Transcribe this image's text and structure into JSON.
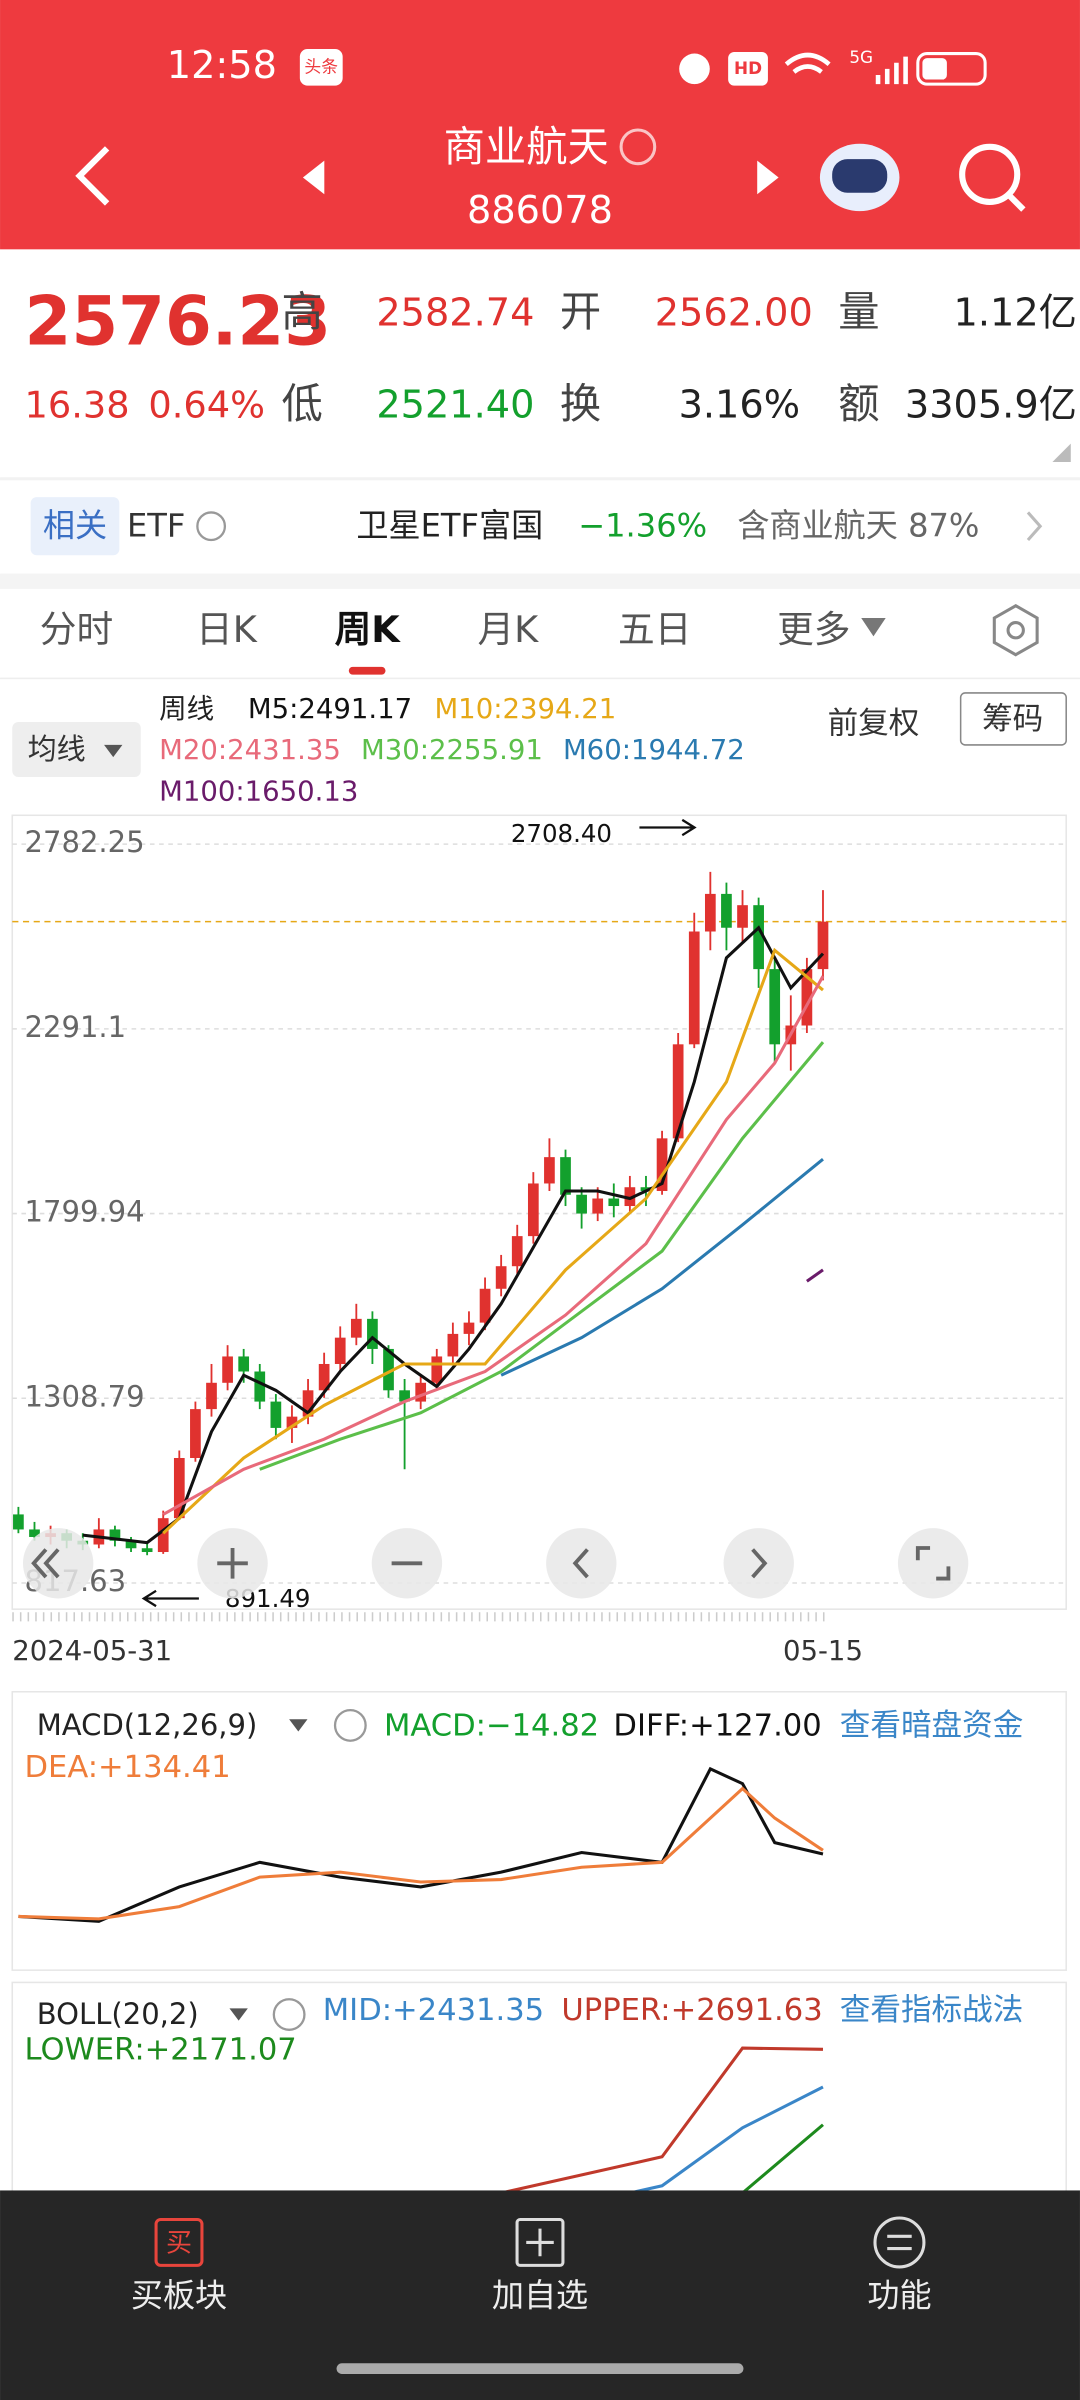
{
  "status": {
    "time": "12:58",
    "badge": "头条",
    "hd": "HD",
    "net": "5G"
  },
  "header": {
    "title": "商业航天",
    "code": "886078"
  },
  "quote": {
    "price": "2576.23",
    "change": "16.38",
    "pct": "0.64%",
    "items": [
      [
        "高",
        "2582.74"
      ],
      [
        "开",
        "2562.00"
      ],
      [
        "量",
        "1.12亿"
      ],
      [
        "低",
        "2521.40"
      ],
      [
        "换",
        "3.16%"
      ],
      [
        "额",
        "3305.9亿"
      ]
    ]
  },
  "etf": {
    "tag": "相关",
    "label": "ETF",
    "name": "卫星ETF富国",
    "pct": "−1.36%",
    "note": "含商业航天 87%"
  },
  "tabs": [
    "分时",
    "日K",
    "周K",
    "月K",
    "五日",
    "更多"
  ],
  "indicator": {
    "menu": "均线",
    "period": "周线",
    "ma_labels": [
      "M5:2491.17",
      "M10:2394.21",
      "M20:2431.35",
      "M30:2255.91",
      "M60:1944.72",
      "M100:1650.13"
    ],
    "adjust": "前复权",
    "chips": "筹码"
  },
  "chart": {
    "ylim": [
      748,
      2859
    ],
    "yticks": [
      2782.25,
      2291.1,
      1799.94,
      1308.79,
      817.63
    ],
    "current": 2576.23,
    "high_label": "2708.40",
    "low_label": "891.49",
    "x_labels": [
      "2024-05-31",
      "05-15"
    ],
    "candles": [
      [
        1000,
        960,
        1020,
        950
      ],
      [
        960,
        940,
        980,
        930
      ],
      [
        940,
        950,
        970,
        920
      ],
      [
        950,
        930,
        960,
        910
      ],
      [
        930,
        920,
        950,
        905
      ],
      [
        920,
        960,
        990,
        910
      ],
      [
        960,
        930,
        970,
        915
      ],
      [
        930,
        910,
        940,
        900
      ],
      [
        910,
        900,
        925,
        891.49
      ],
      [
        900,
        990,
        1010,
        895
      ],
      [
        990,
        1150,
        1170,
        985
      ],
      [
        1150,
        1280,
        1300,
        1140
      ],
      [
        1280,
        1350,
        1400,
        1260
      ],
      [
        1350,
        1420,
        1450,
        1330
      ],
      [
        1420,
        1380,
        1440,
        1350
      ],
      [
        1380,
        1300,
        1400,
        1280
      ],
      [
        1300,
        1230,
        1320,
        1200
      ],
      [
        1230,
        1260,
        1290,
        1190
      ],
      [
        1260,
        1330,
        1360,
        1240
      ],
      [
        1330,
        1400,
        1430,
        1310
      ],
      [
        1400,
        1470,
        1500,
        1380
      ],
      [
        1470,
        1520,
        1560,
        1450
      ],
      [
        1520,
        1440,
        1540,
        1400
      ],
      [
        1440,
        1330,
        1450,
        1310
      ],
      [
        1330,
        1300,
        1360,
        1120
      ],
      [
        1300,
        1350,
        1370,
        1280
      ],
      [
        1350,
        1420,
        1440,
        1330
      ],
      [
        1420,
        1480,
        1510,
        1400
      ],
      [
        1480,
        1510,
        1540,
        1450
      ],
      [
        1510,
        1600,
        1630,
        1490
      ],
      [
        1600,
        1660,
        1690,
        1580
      ],
      [
        1660,
        1740,
        1770,
        1640
      ],
      [
        1740,
        1880,
        1910,
        1720
      ],
      [
        1880,
        1950,
        2000,
        1860
      ],
      [
        1950,
        1850,
        1970,
        1820
      ],
      [
        1850,
        1800,
        1870,
        1760
      ],
      [
        1800,
        1840,
        1870,
        1780
      ],
      [
        1840,
        1820,
        1880,
        1790
      ],
      [
        1820,
        1870,
        1900,
        1800
      ],
      [
        1870,
        1860,
        1900,
        1820
      ],
      [
        1860,
        2000,
        2020,
        1850
      ],
      [
        2000,
        2250,
        2280,
        1990
      ],
      [
        2250,
        2550,
        2600,
        2240
      ],
      [
        2550,
        2650,
        2708.4,
        2500
      ],
      [
        2650,
        2560,
        2680,
        2500
      ],
      [
        2560,
        2620,
        2660,
        2520
      ],
      [
        2620,
        2450,
        2640,
        2400
      ],
      [
        2450,
        2250,
        2480,
        2200
      ],
      [
        2250,
        2300,
        2380,
        2180
      ],
      [
        2300,
        2450,
        2480,
        2280
      ],
      [
        2450,
        2576.23,
        2660,
        2420
      ]
    ],
    "ma": [
      {
        "color": "#111111",
        "x": [
          4,
          6,
          8,
          10,
          12,
          14,
          16,
          18,
          20,
          22,
          24,
          26,
          28,
          30,
          32,
          34,
          36,
          38,
          40,
          42,
          44,
          46,
          48,
          50
        ],
        "values": [
          945,
          935,
          925,
          990,
          1220,
          1370,
          1330,
          1270,
          1380,
          1470,
          1400,
          1340,
          1440,
          1560,
          1710,
          1860,
          1860,
          1840,
          1880,
          2150,
          2480,
          2560,
          2400,
          2491.17
        ]
      },
      {
        "color": "#e6a817",
        "x": [
          9,
          14,
          19,
          24,
          29,
          34,
          39,
          44,
          47,
          50
        ],
        "values": [
          950,
          1150,
          1290,
          1400,
          1400,
          1650,
          1840,
          2150,
          2500,
          2394.21
        ]
      },
      {
        "color": "#e86a7a",
        "x": [
          9,
          14,
          19,
          24,
          29,
          34,
          39,
          44,
          47,
          50
        ],
        "values": [
          1000,
          1120,
          1200,
          1300,
          1380,
          1530,
          1720,
          2050,
          2200,
          2431.35
        ]
      },
      {
        "color": "#5cbf4a",
        "x": [
          15,
          20,
          25,
          30,
          35,
          40,
          45,
          50
        ],
        "values": [
          1120,
          1200,
          1270,
          1380,
          1540,
          1700,
          2000,
          2255.91
        ]
      },
      {
        "color": "#2a7ab0",
        "x": [
          30,
          35,
          40,
          45,
          50
        ],
        "values": [
          1370,
          1470,
          1600,
          1770,
          1944.72
        ]
      },
      {
        "color": "#6a1b6a",
        "x": [
          49,
          50
        ],
        "values": [
          1620,
          1650.13
        ]
      }
    ]
  },
  "macd": {
    "title": "MACD(12,26,9)",
    "macd": "MACD:−14.82",
    "diff": "DIFF:+127.00",
    "dea": "DEA:+134.41",
    "link": "查看暗盘资金",
    "ylim": [
      -100,
      320
    ],
    "x": [
      0,
      5,
      10,
      15,
      20,
      25,
      30,
      35,
      40,
      43,
      45,
      47,
      50
    ],
    "series": [
      {
        "color": "#111111",
        "values": [
          0,
          -10,
          60,
          110,
          80,
          60,
          90,
          130,
          110,
          300,
          270,
          150,
          127.0
        ]
      },
      {
        "color": "#ef7d3a",
        "values": [
          0,
          -5,
          20,
          80,
          90,
          70,
          75,
          100,
          110,
          200,
          260,
          200,
          134.41
        ]
      }
    ]
  },
  "boll": {
    "title": "BOLL(20,2)",
    "mid": "MID:+2431.35",
    "upper": "UPPER:+2691.63",
    "lower": "LOWER:+2171.07",
    "link": "查看指标战法",
    "ylim": [
      1000,
      2900
    ],
    "x": [
      10,
      20,
      30,
      40,
      45,
      50
    ],
    "series": [
      {
        "color": "#3a86c8",
        "values": [
          1150,
          1350,
          1500,
          1750,
          2150,
          2431.35
        ]
      },
      {
        "color": "#c0392b",
        "values": [
          1400,
          1550,
          1700,
          1950,
          2700,
          2691.63
        ]
      },
      {
        "color": "#1d8a1d",
        "values": [
          900,
          1150,
          1300,
          1550,
          1700,
          2171.07
        ]
      }
    ]
  },
  "nav": {
    "icon": "买",
    "items": [
      "买板块",
      "加自选",
      "功能"
    ]
  }
}
